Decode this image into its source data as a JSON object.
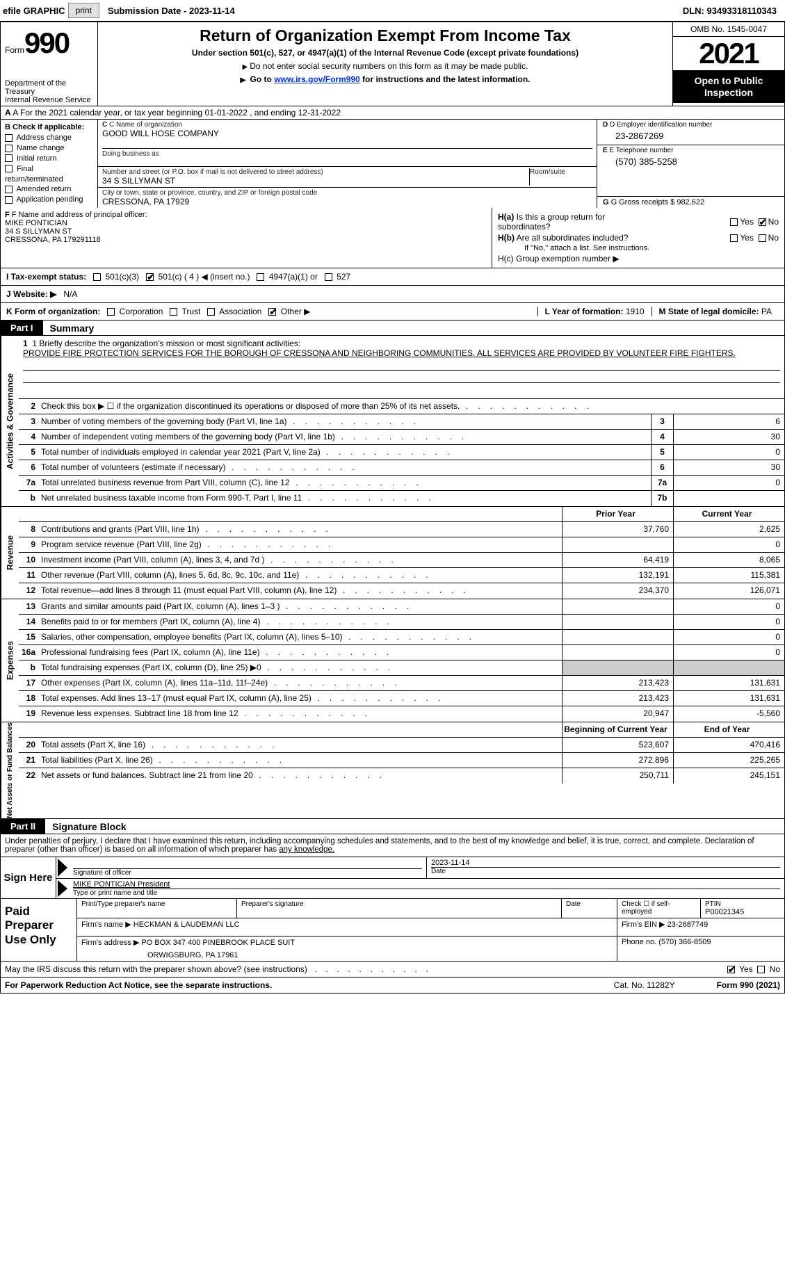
{
  "topbar": {
    "efile": "efile GRAPHIC",
    "print": "print",
    "submission": "Submission Date - 2023-11-14",
    "dln": "DLN: 93493318110343"
  },
  "header": {
    "form_word": "Form",
    "form_num": "990",
    "title": "Return of Organization Exempt From Income Tax",
    "sub1": "Under section 501(c), 527, or 4947(a)(1) of the Internal Revenue Code (except private foundations)",
    "sub2": "Do not enter social security numbers on this form as it may be made public.",
    "sub3_pre": "Go to ",
    "sub3_link": "www.irs.gov/Form990",
    "sub3_post": " for instructions and the latest information.",
    "dept": "Department of the Treasury\nInternal Revenue Service",
    "omb": "OMB No. 1545-0047",
    "year": "2021",
    "open": "Open to Public Inspection"
  },
  "row_a": {
    "text": "A For the 2021 calendar year, or tax year beginning 01-01-2022    , and ending 12-31-2022"
  },
  "col_b": {
    "label": "B Check if applicable:",
    "items": [
      "Address change",
      "Name change",
      "Initial return",
      "Final return/terminated",
      "Amended return",
      "Application pending"
    ]
  },
  "col_c": {
    "name_label": "C Name of organization",
    "name": "GOOD WILL HOSE COMPANY",
    "dba_label": "Doing business as",
    "dba": "",
    "street_label": "Number and street (or P.O. box if mail is not delivered to street address)",
    "room_label": "Room/suite",
    "street": "34 S SILLYMAN ST",
    "city_label": "City or town, state or province, country, and ZIP or foreign postal code",
    "city": "CRESSONA, PA  17929"
  },
  "col_d": {
    "ein_label": "D Employer identification number",
    "ein": "23-2867269",
    "phone_label": "E Telephone number",
    "phone": "(570) 385-5258",
    "gross_label": "G Gross receipts $",
    "gross": "982,622"
  },
  "f": {
    "label": "F Name and address of principal officer:",
    "name": "MIKE PONTICIAN",
    "street": "34 S SILLYMAN ST",
    "city": "CRESSONA, PA  179291118"
  },
  "h": {
    "a_label": "H(a)  Is this a group return for subordinates?",
    "b_label": "H(b)  Are all subordinates included?",
    "b_note": "If \"No,\" attach a list. See instructions.",
    "c_label": "H(c)  Group exemption number ▶",
    "yes": "Yes",
    "no": "No"
  },
  "i": {
    "label": "I   Tax-exempt status:",
    "opts": [
      "501(c)(3)",
      "501(c) ( 4 ) ◀ (insert no.)",
      "4947(a)(1) or",
      "527"
    ]
  },
  "j": {
    "label": "J   Website: ▶",
    "val": "N/A"
  },
  "k": {
    "label": "K Form of organization:",
    "opts": [
      "Corporation",
      "Trust",
      "Association",
      "Other ▶"
    ],
    "l_label": "L Year of formation:",
    "l_val": "1910",
    "m_label": "M State of legal domicile:",
    "m_val": "PA"
  },
  "part1": {
    "tag": "Part I",
    "title": "Summary"
  },
  "mission": {
    "label": "1   Briefly describe the organization's mission or most significant activities:",
    "text": "PROVIDE FIRE PROTECTION SERVICES FOR THE BOROUGH OF CRESSONA AND NEIGHBORING COMMUNITIES. ALL SERVICES ARE PROVIDED BY VOLUNTEER FIRE FIGHTERS."
  },
  "sections": {
    "activities": {
      "label": "Activities & Governance",
      "rows": [
        {
          "n": "2",
          "d": "Check this box ▶ ☐  if the organization discontinued its operations or disposed of more than 25% of its net assets.",
          "box": "",
          "v1": "",
          "v2": ""
        },
        {
          "n": "3",
          "d": "Number of voting members of the governing body (Part VI, line 1a)",
          "box": "3",
          "v2": "6"
        },
        {
          "n": "4",
          "d": "Number of independent voting members of the governing body (Part VI, line 1b)",
          "box": "4",
          "v2": "30"
        },
        {
          "n": "5",
          "d": "Total number of individuals employed in calendar year 2021 (Part V, line 2a)",
          "box": "5",
          "v2": "0"
        },
        {
          "n": "6",
          "d": "Total number of volunteers (estimate if necessary)",
          "box": "6",
          "v2": "30"
        },
        {
          "n": "7a",
          "d": "Total unrelated business revenue from Part VIII, column (C), line 12",
          "box": "7a",
          "v2": "0"
        },
        {
          "n": "b",
          "d": "Net unrelated business taxable income from Form 990-T, Part I, line 11",
          "box": "7b",
          "v2": ""
        }
      ]
    },
    "revenue": {
      "label": "Revenue",
      "header": {
        "prior": "Prior Year",
        "current": "Current Year"
      },
      "rows": [
        {
          "n": "8",
          "d": "Contributions and grants (Part VIII, line 1h)",
          "v1": "37,760",
          "v2": "2,625"
        },
        {
          "n": "9",
          "d": "Program service revenue (Part VIII, line 2g)",
          "v1": "",
          "v2": "0"
        },
        {
          "n": "10",
          "d": "Investment income (Part VIII, column (A), lines 3, 4, and 7d )",
          "v1": "64,419",
          "v2": "8,065"
        },
        {
          "n": "11",
          "d": "Other revenue (Part VIII, column (A), lines 5, 6d, 8c, 9c, 10c, and 11e)",
          "v1": "132,191",
          "v2": "115,381"
        },
        {
          "n": "12",
          "d": "Total revenue—add lines 8 through 11 (must equal Part VIII, column (A), line 12)",
          "v1": "234,370",
          "v2": "126,071"
        }
      ]
    },
    "expenses": {
      "label": "Expenses",
      "rows": [
        {
          "n": "13",
          "d": "Grants and similar amounts paid (Part IX, column (A), lines 1–3 )",
          "v1": "",
          "v2": "0"
        },
        {
          "n": "14",
          "d": "Benefits paid to or for members (Part IX, column (A), line 4)",
          "v1": "",
          "v2": "0"
        },
        {
          "n": "15",
          "d": "Salaries, other compensation, employee benefits (Part IX, column (A), lines 5–10)",
          "v1": "",
          "v2": "0"
        },
        {
          "n": "16a",
          "d": "Professional fundraising fees (Part IX, column (A), line 11e)",
          "v1": "",
          "v2": "0"
        },
        {
          "n": "b",
          "d": "Total fundraising expenses (Part IX, column (D), line 25) ▶0",
          "v1": "shade",
          "v2": "shade"
        },
        {
          "n": "17",
          "d": "Other expenses (Part IX, column (A), lines 11a–11d, 11f–24e)",
          "v1": "213,423",
          "v2": "131,631"
        },
        {
          "n": "18",
          "d": "Total expenses. Add lines 13–17 (must equal Part IX, column (A), line 25)",
          "v1": "213,423",
          "v2": "131,631"
        },
        {
          "n": "19",
          "d": "Revenue less expenses. Subtract line 18 from line 12",
          "v1": "20,947",
          "v2": "-5,560"
        }
      ]
    },
    "netassets": {
      "label": "Net Assets or Fund Balances",
      "header": {
        "prior": "Beginning of Current Year",
        "current": "End of Year"
      },
      "rows": [
        {
          "n": "20",
          "d": "Total assets (Part X, line 16)",
          "v1": "523,607",
          "v2": "470,416"
        },
        {
          "n": "21",
          "d": "Total liabilities (Part X, line 26)",
          "v1": "272,896",
          "v2": "225,265"
        },
        {
          "n": "22",
          "d": "Net assets or fund balances. Subtract line 21 from line 20",
          "v1": "250,711",
          "v2": "245,151"
        }
      ]
    }
  },
  "part2": {
    "tag": "Part II",
    "title": "Signature Block"
  },
  "sig": {
    "intro": "Under penalties of perjury, I declare that I have examined this return, including accompanying schedules and statements, and to the best of my knowledge and belief, it is true, correct, and complete. Declaration of preparer (other than officer) is based on all information of which preparer has ",
    "intro_u": "any knowledge.",
    "here": "Sign Here",
    "sig_officer": "Signature of officer",
    "date": "2023-11-14",
    "date_label": "Date",
    "name": "MIKE PONTICIAN  President",
    "name_label": "Type or print name and title"
  },
  "prep": {
    "left": "Paid Preparer Use Only",
    "r1": {
      "c1_lab": "Print/Type preparer's name",
      "c2_lab": "Preparer's signature",
      "c3_lab": "Date",
      "c4_lab": "Check ☐ if self-employed",
      "c5_lab": "PTIN",
      "c5_val": "P00021345"
    },
    "r2": {
      "firm_label": "Firm's name    ▶",
      "firm": "HECKMAN & LAUDEMAN LLC",
      "ein_label": "Firm's EIN ▶",
      "ein": "23-2687749"
    },
    "r3": {
      "addr_label": "Firm's address ▶",
      "addr1": "PO BOX 347 400 PINEBROOK PLACE SUIT",
      "addr2": "ORWIGSBURG, PA  17961",
      "phone_label": "Phone no.",
      "phone": "(570) 366-8509"
    }
  },
  "footer": {
    "discuss": "May the IRS discuss this return with the preparer shown above? (see instructions)",
    "yes": "Yes",
    "no": "No",
    "paperwork": "For Paperwork Reduction Act Notice, see the separate instructions.",
    "cat": "Cat. No. 11282Y",
    "formref": "Form 990 (2021)"
  }
}
